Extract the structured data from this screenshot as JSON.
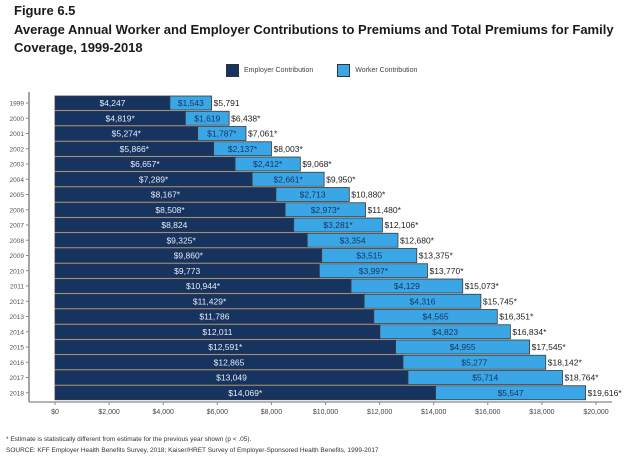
{
  "figure_label": "Figure 6.5",
  "title": "Average Annual Worker and Employer Contributions to Premiums and Total Premiums for Family Coverage, 1999-2018",
  "footnote": "* Estimate is statistically different from estimate for the previous year shown (p < .05).",
  "source": "SOURCE: KFF Employer Health Benefits Survey, 2018; Kaiser/HRET Survey of Employer-Sponsored Health Benefits, 1999-2017",
  "colors": {
    "employer": "#17335f",
    "worker": "#3aa6e6"
  },
  "chart_data": {
    "type": "bar",
    "orientation": "horizontal",
    "stacked": true,
    "title": "Average Annual Worker and Employer Contributions to Premiums and Total Premiums for Family Coverage, 1999-2018",
    "xlabel": "",
    "ylabel": "",
    "xlim": [
      0,
      20000
    ],
    "x_ticks": [
      "$0",
      "$2,000",
      "$4,000",
      "$6,000",
      "$8,000",
      "$10,000",
      "$12,000",
      "$14,000",
      "$16,000",
      "$18,000",
      "$20,000"
    ],
    "x_tick_values": [
      0,
      2000,
      4000,
      6000,
      8000,
      10000,
      12000,
      14000,
      16000,
      18000,
      20000
    ],
    "grid": false,
    "legend_position": "top-center",
    "categories": [
      "1999",
      "2000",
      "2001",
      "2002",
      "2003",
      "2004",
      "2005",
      "2006",
      "2007",
      "2008",
      "2009",
      "2010",
      "2011",
      "2012",
      "2013",
      "2014",
      "2015",
      "2016",
      "2017",
      "2018"
    ],
    "series": [
      {
        "name": "Employer Contribution",
        "values": [
          4247,
          4819,
          5274,
          5866,
          6657,
          7289,
          8167,
          8508,
          8824,
          9325,
          9860,
          9773,
          10944,
          11429,
          11786,
          12011,
          12591,
          12865,
          13049,
          14069
        ],
        "labels": [
          "$4,247",
          "$4,819*",
          "$5,274*",
          "$5,866*",
          "$6,657*",
          "$7,289*",
          "$8,167*",
          "$8,508*",
          "$8,824",
          "$9,325*",
          "$9,860*",
          "$9,773",
          "$10,944*",
          "$11,429*",
          "$11,786",
          "$12,011",
          "$12,591*",
          "$12,865",
          "$13,049",
          "$14,069*"
        ]
      },
      {
        "name": "Worker Contribution",
        "values": [
          1543,
          1619,
          1787,
          2137,
          2412,
          2661,
          2713,
          2973,
          3281,
          3354,
          3515,
          3997,
          4129,
          4316,
          4565,
          4823,
          4955,
          5277,
          5714,
          5547
        ],
        "labels": [
          "$1,543",
          "$1,619",
          "$1,787*",
          "$2,137*",
          "$2,412*",
          "$2,661*",
          "$2,713",
          "$2,973*",
          "$3,281*",
          "$3,354",
          "$3,515",
          "$3,997*",
          "$4,129",
          "$4,316",
          "$4,565",
          "$4,823",
          "$4,955",
          "$5,277",
          "$5,714",
          "$5,547"
        ]
      }
    ],
    "totals": {
      "values": [
        5791,
        6438,
        7061,
        8003,
        9068,
        9950,
        10880,
        11480,
        12106,
        12680,
        13375,
        13770,
        15073,
        15745,
        16351,
        16834,
        17545,
        18142,
        18764,
        19616
      ],
      "labels": [
        "$5,791",
        "$6,438*",
        "$7,061*",
        "$8,003*",
        "$9,068*",
        "$9,950*",
        "$10,880*",
        "$11,480*",
        "$12,106*",
        "$12,680*",
        "$13,375*",
        "$13,770*",
        "$15,073*",
        "$15,745*",
        "$16,351*",
        "$16,834*",
        "$17,545*",
        "$18,142*",
        "$18,764*",
        "$19,616*"
      ]
    }
  }
}
